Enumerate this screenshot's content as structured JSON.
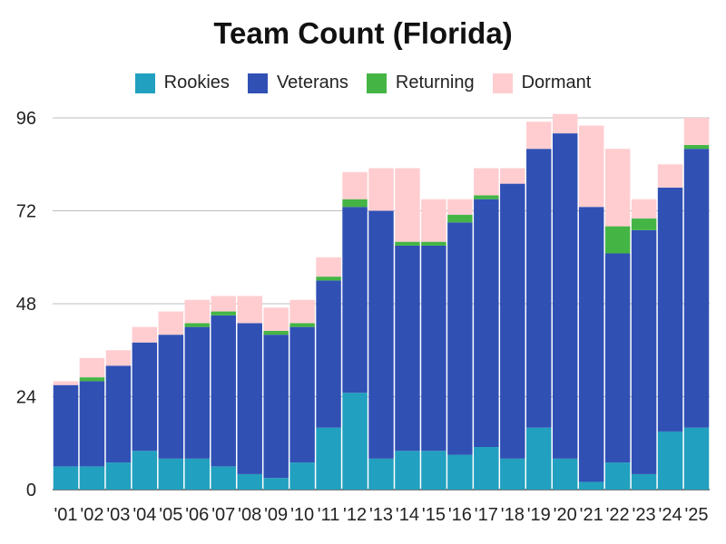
{
  "chart_data": {
    "type": "bar",
    "stacked": true,
    "title": "Team Count (Florida)",
    "xlabel": "",
    "ylabel": "",
    "ylim": [
      0,
      96
    ],
    "yticks": [
      0,
      24,
      48,
      72,
      96
    ],
    "grid": true,
    "legend_position": "top",
    "categories": [
      "'01",
      "'02",
      "'03",
      "'04",
      "'05",
      "'06",
      "'07",
      "'08",
      "'09",
      "'10",
      "'11",
      "'12",
      "'13",
      "'14",
      "'15",
      "'16",
      "'17",
      "'18",
      "'19",
      "'20",
      "'21",
      "'22",
      "'23",
      "'24",
      "'25"
    ],
    "series": [
      {
        "name": "Rookies",
        "color": "#21a0bf",
        "values": [
          6,
          6,
          7,
          10,
          8,
          8,
          6,
          4,
          3,
          7,
          16,
          25,
          8,
          10,
          10,
          9,
          11,
          8,
          16,
          8,
          2,
          7,
          4,
          15,
          16
        ]
      },
      {
        "name": "Veterans",
        "color": "#3050b4",
        "values": [
          21,
          22,
          25,
          28,
          32,
          34,
          39,
          39,
          37,
          35,
          38,
          48,
          64,
          53,
          53,
          60,
          64,
          71,
          72,
          84,
          71,
          54,
          63,
          63,
          72
        ]
      },
      {
        "name": "Returning",
        "color": "#44b545",
        "values": [
          0,
          1,
          0,
          0,
          0,
          1,
          1,
          0,
          1,
          1,
          1,
          2,
          0,
          1,
          1,
          2,
          1,
          0,
          0,
          0,
          0,
          7,
          3,
          0,
          1
        ]
      },
      {
        "name": "Dormant",
        "color": "#ffcdd0",
        "values": [
          1,
          5,
          4,
          4,
          6,
          6,
          4,
          7,
          6,
          6,
          5,
          7,
          11,
          19,
          11,
          4,
          7,
          4,
          7,
          5,
          21,
          20,
          5,
          6,
          7
        ]
      }
    ]
  }
}
